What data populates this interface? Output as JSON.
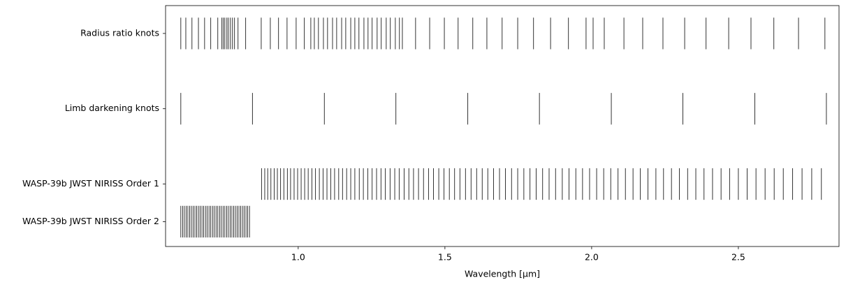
{
  "chart_data": {
    "type": "eventplot",
    "color": "#000000",
    "xlabel": "Wavelength [μm]",
    "xlim": [
      0.548,
      2.843
    ],
    "xticks": [
      {
        "value": 1,
        "label": "1.0"
      },
      {
        "value": 1.5,
        "label": "1.5"
      },
      {
        "value": 2,
        "label": "2.0"
      },
      {
        "value": 2.5,
        "label": "2.5"
      }
    ],
    "ylim": [
      0.17,
      3.37
    ],
    "yticks": [
      {
        "value": 3,
        "label": "Radius ratio knots"
      },
      {
        "value": 2,
        "label": "Limb darkening knots"
      },
      {
        "value": 1,
        "label": "WASP-39b JWST NIRISS Order 1"
      },
      {
        "value": 0.5,
        "label": "WASP-39b JWST NIRISS Order 2"
      }
    ],
    "series": [
      {
        "values": [
          0.6,
          0.617,
          0.638,
          0.66,
          0.681,
          0.702,
          0.726,
          0.74,
          0.745,
          0.75,
          0.757,
          0.762,
          0.769,
          0.776,
          0.783,
          0.795,
          0.821,
          0.874,
          0.905,
          0.933,
          0.962,
          0.993,
          1.021,
          1.043,
          1.055,
          1.069,
          1.086,
          1.1,
          1.117,
          1.131,
          1.148,
          1.162,
          1.179,
          1.193,
          1.207,
          1.224,
          1.238,
          1.252,
          1.269,
          1.283,
          1.3,
          1.314,
          1.331,
          1.345,
          1.355,
          1.4,
          1.448,
          1.498,
          1.545,
          1.595,
          1.643,
          1.695,
          1.748,
          1.802,
          1.86,
          1.921,
          1.981,
          2.005,
          2.043,
          2.11,
          2.174,
          2.243,
          2.317,
          2.39,
          2.467,
          2.543,
          2.621,
          2.705,
          2.795
        ]
      },
      {
        "values": [
          0.6,
          0.844,
          1.089,
          1.333,
          1.578,
          1.822,
          2.067,
          2.311,
          2.556,
          2.8
        ]
      },
      {
        "values": [
          0.875,
          0.886,
          0.896,
          0.907,
          0.918,
          0.929,
          0.94,
          0.951,
          0.963,
          0.974,
          0.986,
          0.998,
          1.01,
          1.022,
          1.034,
          1.047,
          1.059,
          1.072,
          1.085,
          1.098,
          1.111,
          1.124,
          1.138,
          1.151,
          1.165,
          1.179,
          1.193,
          1.208,
          1.222,
          1.237,
          1.252,
          1.267,
          1.282,
          1.297,
          1.313,
          1.329,
          1.344,
          1.361,
          1.377,
          1.393,
          1.41,
          1.427,
          1.444,
          1.461,
          1.479,
          1.497,
          1.515,
          1.533,
          1.551,
          1.57,
          1.589,
          1.608,
          1.627,
          1.646,
          1.666,
          1.686,
          1.706,
          1.727,
          1.748,
          1.769,
          1.79,
          1.811,
          1.833,
          1.855,
          1.877,
          1.9,
          1.923,
          1.946,
          1.969,
          1.993,
          2.017,
          2.041,
          2.065,
          2.09,
          2.115,
          2.141,
          2.166,
          2.192,
          2.219,
          2.245,
          2.272,
          2.299,
          2.327,
          2.355,
          2.383,
          2.412,
          2.441,
          2.47,
          2.5,
          2.53,
          2.56,
          2.591,
          2.622,
          2.653,
          2.685,
          2.717,
          2.75,
          2.783
        ]
      },
      {
        "values": [
          0.6,
          0.606,
          0.612,
          0.618,
          0.624,
          0.63,
          0.636,
          0.642,
          0.648,
          0.654,
          0.66,
          0.666,
          0.672,
          0.678,
          0.684,
          0.69,
          0.696,
          0.702,
          0.708,
          0.714,
          0.72,
          0.726,
          0.732,
          0.738,
          0.744,
          0.75,
          0.756,
          0.762,
          0.768,
          0.774,
          0.78,
          0.786,
          0.792,
          0.798,
          0.804,
          0.81,
          0.816,
          0.822,
          0.828,
          0.834
        ]
      }
    ]
  }
}
